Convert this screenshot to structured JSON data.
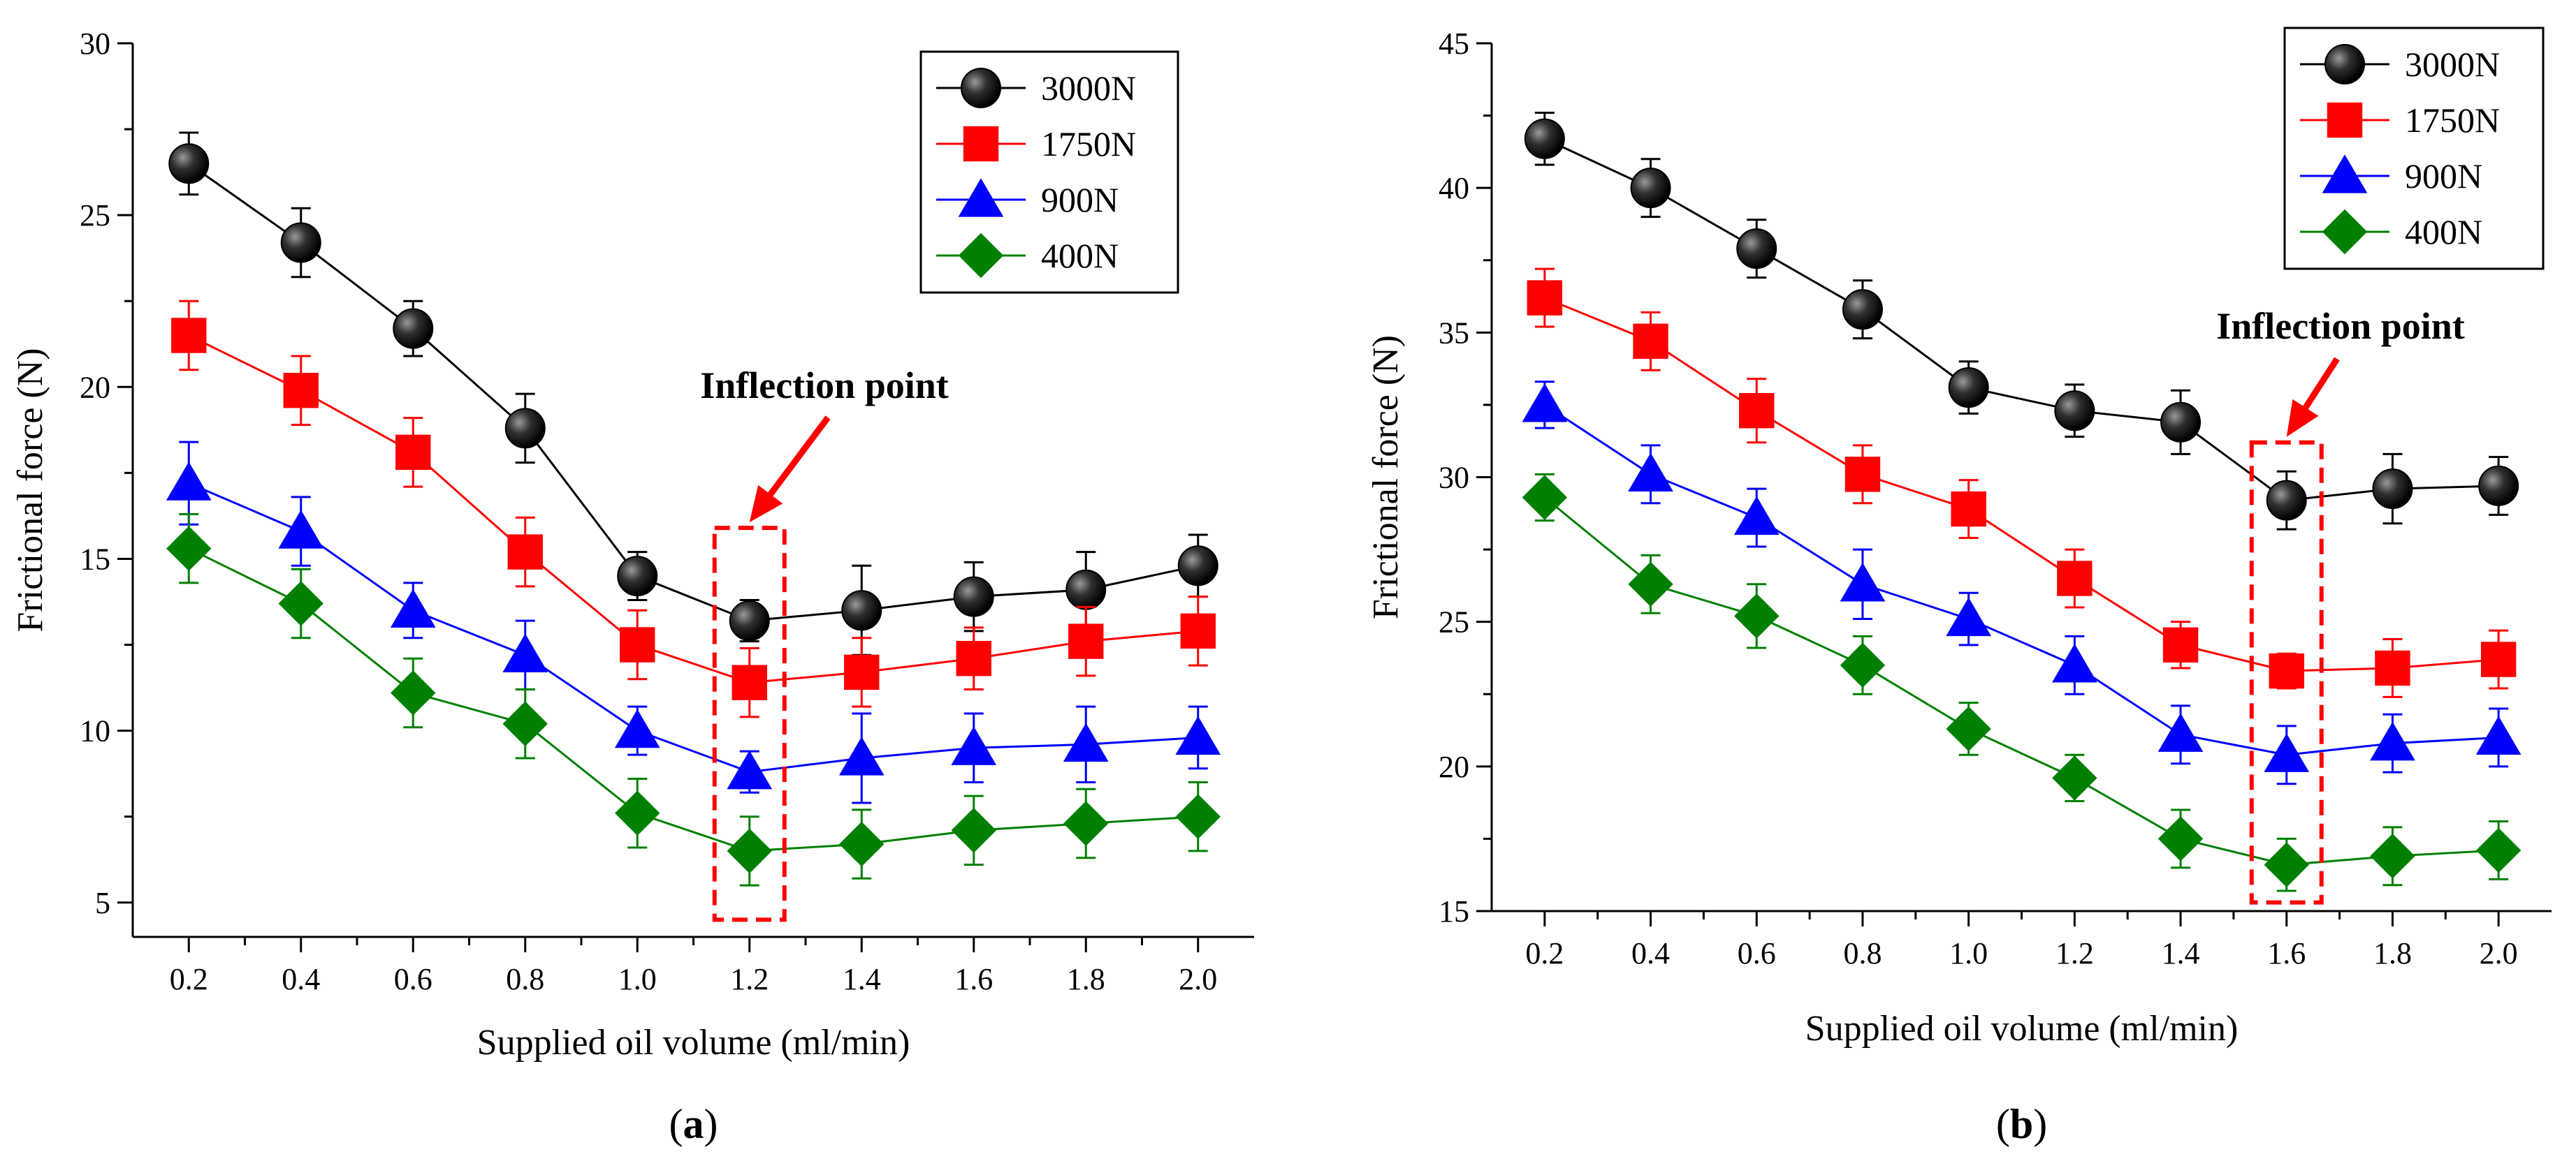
{
  "chart_data": [
    {
      "type": "line",
      "panel_label": "a",
      "title": "",
      "xlabel": "Supplied oil volume (ml/min)",
      "ylabel": "Frictional force (N)",
      "x": [
        0.2,
        0.4,
        0.6,
        0.8,
        1.0,
        1.2,
        1.4,
        1.6,
        1.8,
        2.0
      ],
      "x_tick_labels": [
        "0.2",
        "0.4",
        "0.6",
        "0.8",
        "1.0",
        "1.2",
        "1.4",
        "1.6",
        "1.8",
        "2.0"
      ],
      "xlim": [
        0.1,
        2.1
      ],
      "ylim": [
        4,
        30
      ],
      "y_ticks": [
        5,
        10,
        15,
        20,
        25,
        30
      ],
      "y_tick_labels": [
        "5",
        "10",
        "15",
        "20",
        "25",
        "30"
      ],
      "legend_position": "top-right",
      "grid": false,
      "series": [
        {
          "name": "3000N",
          "color": "#000000",
          "marker": "circle",
          "values": [
            26.5,
            24.2,
            21.7,
            18.8,
            14.5,
            13.2,
            13.5,
            13.9,
            14.1,
            14.8
          ],
          "errors": [
            0.9,
            1.0,
            0.8,
            1.0,
            0.7,
            0.6,
            1.3,
            1.0,
            1.1,
            0.9
          ]
        },
        {
          "name": "1750N",
          "color": "#ff0000",
          "marker": "square",
          "values": [
            21.5,
            19.9,
            18.1,
            15.2,
            12.5,
            11.4,
            11.7,
            12.1,
            12.6,
            12.9
          ],
          "errors": [
            1.0,
            1.0,
            1.0,
            1.0,
            1.0,
            1.0,
            1.0,
            0.9,
            1.0,
            1.0
          ]
        },
        {
          "name": "900N",
          "color": "#0000ff",
          "marker": "triangle",
          "values": [
            17.2,
            15.8,
            13.5,
            12.2,
            10.0,
            8.8,
            9.2,
            9.5,
            9.6,
            9.8
          ],
          "errors": [
            1.2,
            1.0,
            0.8,
            1.0,
            0.7,
            0.6,
            1.3,
            1.0,
            1.1,
            0.9
          ]
        },
        {
          "name": "400N",
          "color": "#008000",
          "marker": "diamond",
          "values": [
            15.3,
            13.7,
            11.1,
            10.2,
            7.6,
            6.5,
            6.7,
            7.1,
            7.3,
            7.5
          ],
          "errors": [
            1.0,
            1.0,
            1.0,
            1.0,
            1.0,
            1.0,
            1.0,
            1.0,
            1.0,
            1.0
          ]
        }
      ],
      "annotation": {
        "text": "Inflection point",
        "x": 1.2,
        "box_ylim": [
          4.5,
          15.9
        ]
      }
    },
    {
      "type": "line",
      "panel_label": "b",
      "title": "",
      "xlabel": "Supplied oil volume (ml/min)",
      "ylabel": "Frictional force (N)",
      "x": [
        0.2,
        0.4,
        0.6,
        0.8,
        1.0,
        1.2,
        1.4,
        1.6,
        1.8,
        2.0
      ],
      "x_tick_labels": [
        "0.2",
        "0.4",
        "0.6",
        "0.8",
        "1.0",
        "1.2",
        "1.4",
        "1.6",
        "1.8",
        "2.0"
      ],
      "xlim": [
        0.1,
        2.1
      ],
      "ylim": [
        15,
        45
      ],
      "y_ticks": [
        15,
        20,
        25,
        30,
        35,
        40,
        45
      ],
      "y_tick_labels": [
        "15",
        "20",
        "25",
        "30",
        "35",
        "40",
        "45"
      ],
      "legend_position": "top-right",
      "grid": false,
      "series": [
        {
          "name": "3000N",
          "color": "#000000",
          "marker": "circle",
          "values": [
            41.7,
            40.0,
            37.9,
            35.8,
            33.1,
            32.3,
            31.9,
            29.2,
            29.6,
            29.7
          ],
          "errors": [
            0.9,
            1.0,
            1.0,
            1.0,
            0.9,
            0.9,
            1.1,
            1.0,
            1.2,
            1.0
          ]
        },
        {
          "name": "1750N",
          "color": "#ff0000",
          "marker": "square",
          "values": [
            36.2,
            34.7,
            32.3,
            30.1,
            28.9,
            26.5,
            24.2,
            23.3,
            23.4,
            23.7
          ],
          "errors": [
            1.0,
            1.0,
            1.1,
            1.0,
            1.0,
            1.0,
            0.8,
            0.6,
            1.0,
            1.0
          ]
        },
        {
          "name": "900N",
          "color": "#0000ff",
          "marker": "triangle",
          "values": [
            32.5,
            30.1,
            28.6,
            26.3,
            25.1,
            23.5,
            21.1,
            20.4,
            20.8,
            21.0
          ],
          "errors": [
            0.8,
            1.0,
            1.0,
            1.2,
            0.9,
            1.0,
            1.0,
            1.0,
            1.0,
            1.0
          ]
        },
        {
          "name": "400N",
          "color": "#008000",
          "marker": "diamond",
          "values": [
            29.3,
            26.3,
            25.2,
            23.5,
            21.3,
            19.6,
            17.5,
            16.6,
            16.9,
            17.1
          ],
          "errors": [
            0.8,
            1.0,
            1.1,
            1.0,
            0.9,
            0.8,
            1.0,
            0.9,
            1.0,
            1.0
          ]
        }
      ],
      "annotation": {
        "text": "Inflection point",
        "x": 1.6,
        "box_ylim": [
          15.3,
          31.2
        ]
      }
    }
  ]
}
